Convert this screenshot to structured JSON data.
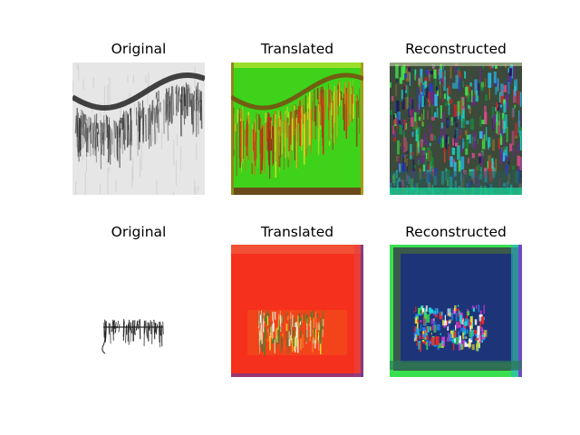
{
  "figure": {
    "rows": [
      {
        "panels": [
          {
            "title": "Original",
            "kind": "grayscale-signal"
          },
          {
            "title": "Translated",
            "kind": "green-translated-signal"
          },
          {
            "title": "Reconstructed",
            "kind": "multicolor-noisy-signal"
          }
        ]
      },
      {
        "panels": [
          {
            "title": "Original",
            "kind": "handwritten-text"
          },
          {
            "title": "Translated",
            "kind": "red-translated-text"
          },
          {
            "title": "Reconstructed",
            "kind": "navy-noisy-text"
          }
        ]
      }
    ]
  }
}
